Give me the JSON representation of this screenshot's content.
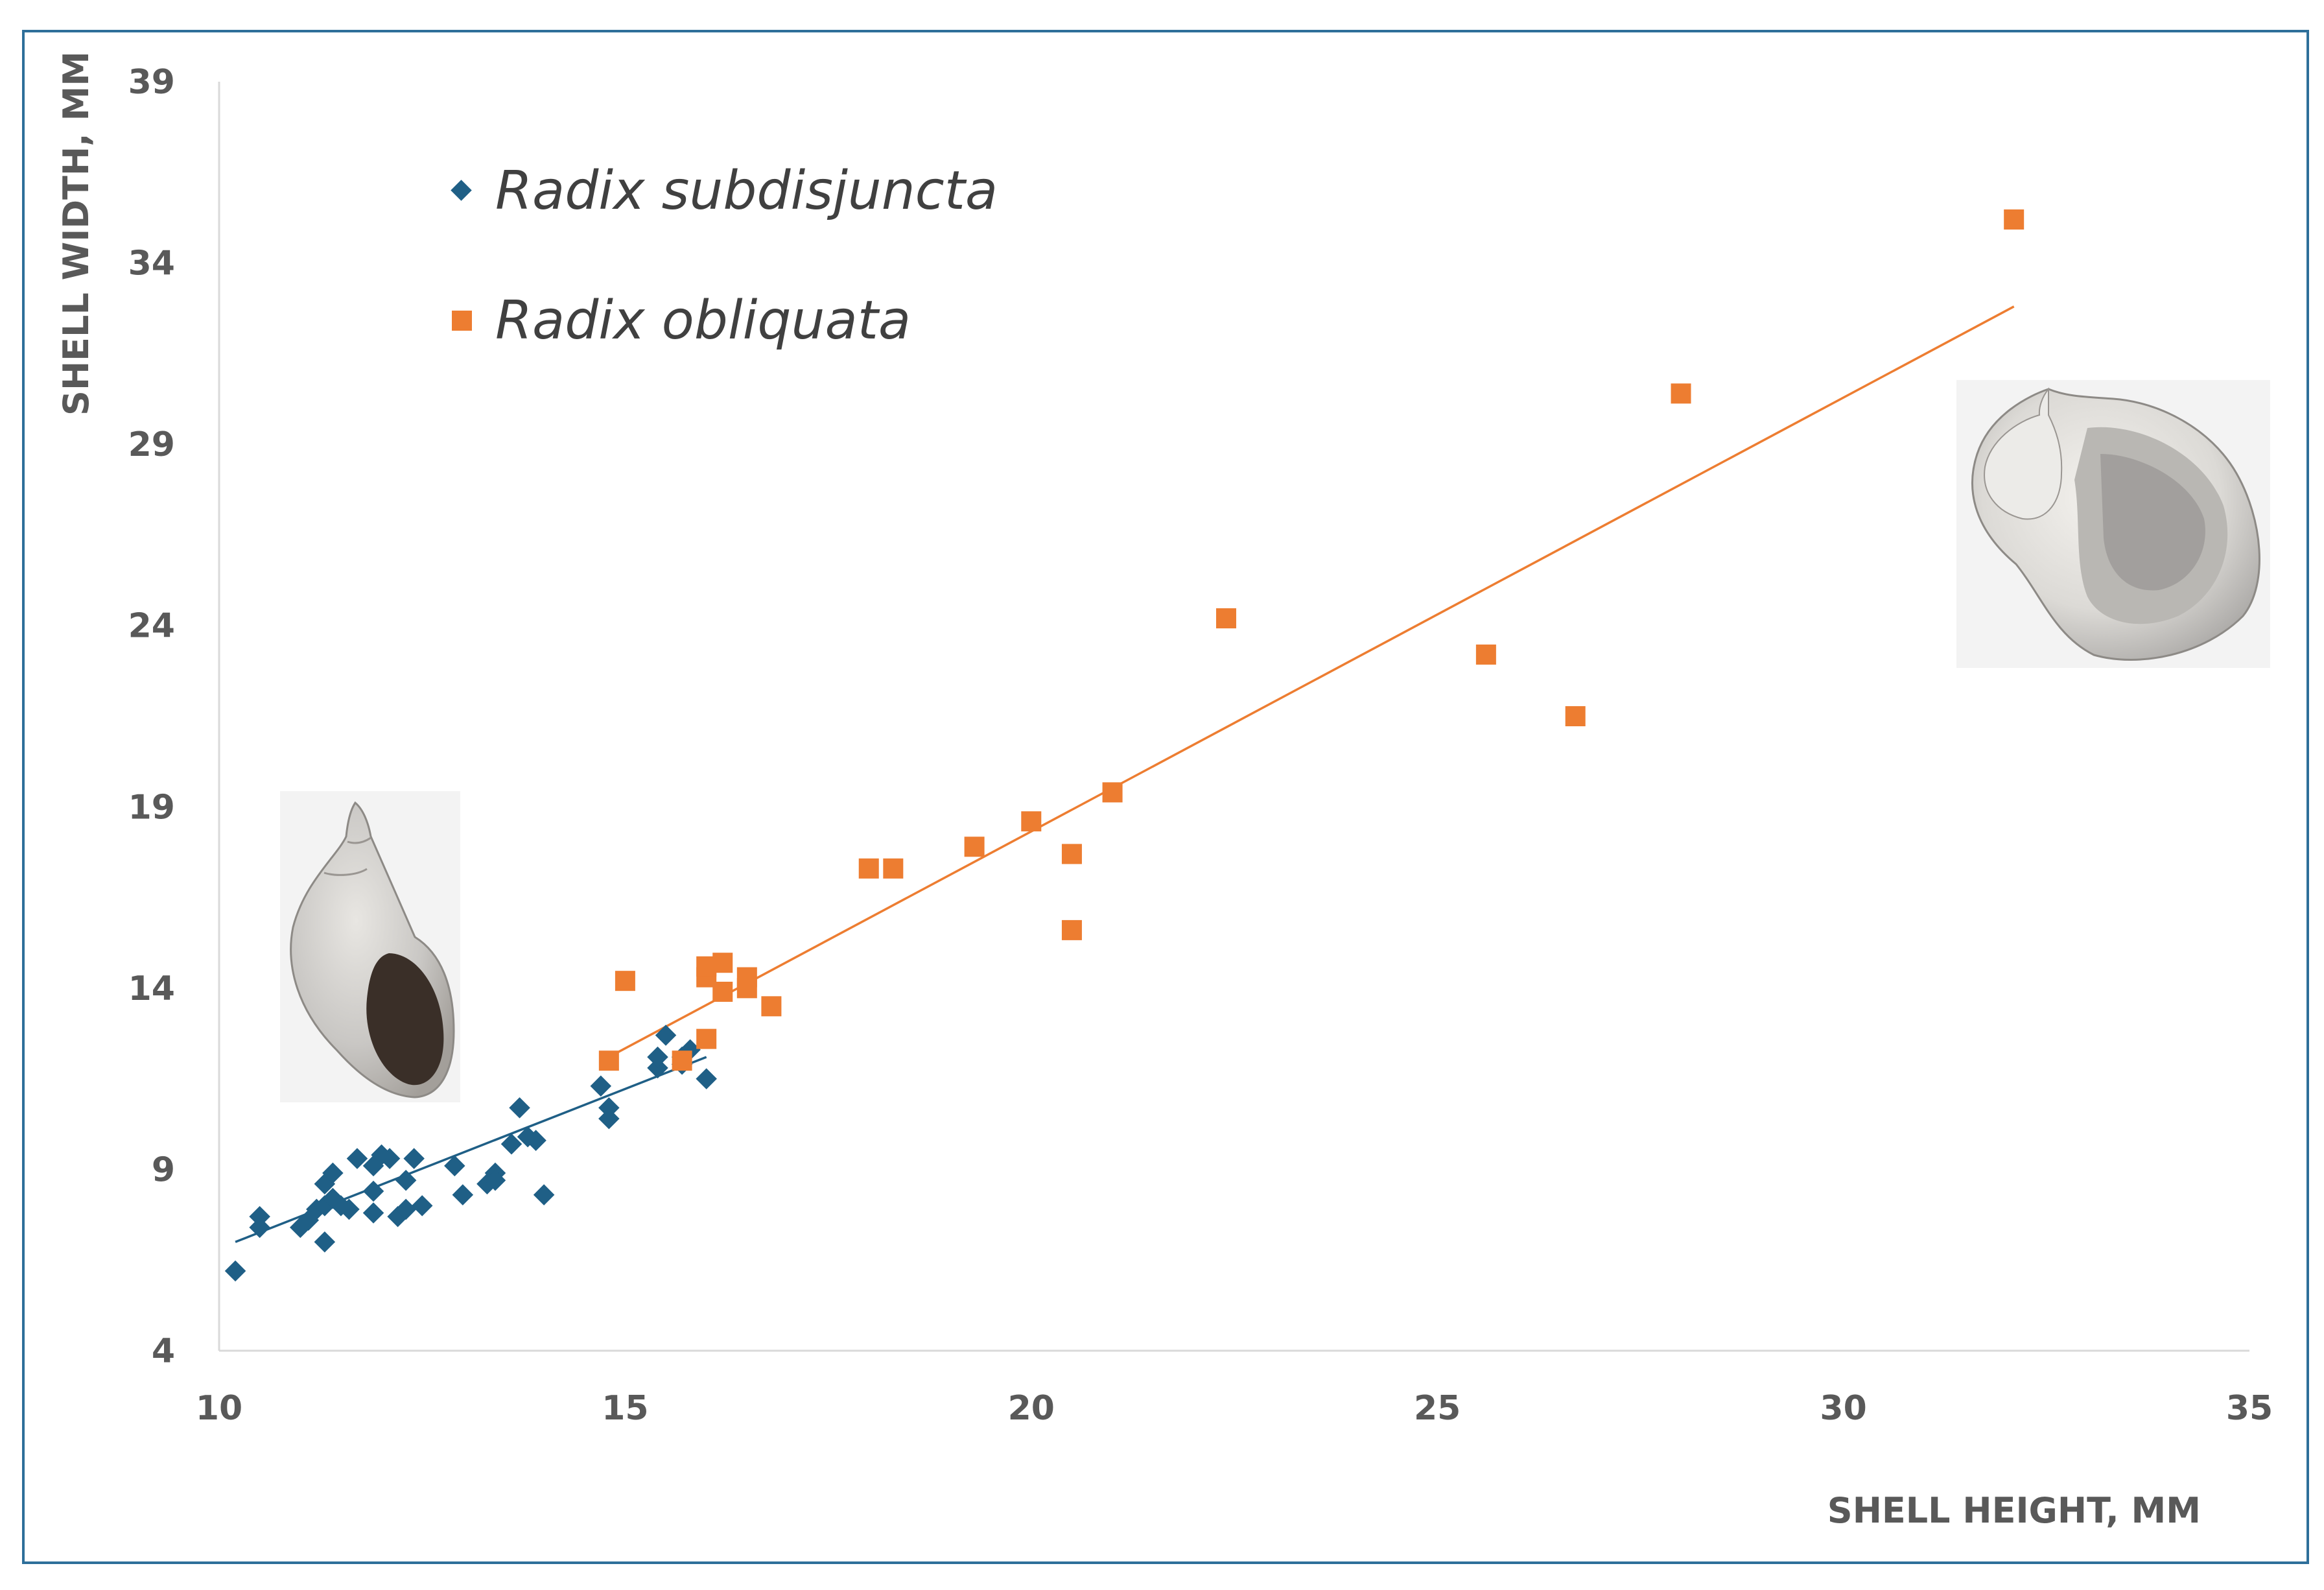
{
  "chart_data": {
    "type": "scatter",
    "xlabel": "SHELL HEIGHT, MM",
    "ylabel": "SHELL WIDTH, MM",
    "xlim": [
      10,
      35
    ],
    "ylim": [
      4,
      39
    ],
    "xticks": [
      10,
      15,
      20,
      25,
      30,
      35
    ],
    "yticks": [
      4,
      9,
      14,
      19,
      24,
      29,
      34,
      39
    ],
    "grid": false,
    "legend_position": "top-left",
    "series": [
      {
        "name": "Radix subdisjuncta",
        "marker": "diamond",
        "color": "#1f5f86",
        "points": [
          [
            10.2,
            6.2
          ],
          [
            10.5,
            7.4
          ],
          [
            10.5,
            7.7
          ],
          [
            11.0,
            7.4
          ],
          [
            11.1,
            7.6
          ],
          [
            11.2,
            7.9
          ],
          [
            11.3,
            8.0
          ],
          [
            11.3,
            8.6
          ],
          [
            11.4,
            8.9
          ],
          [
            11.4,
            8.2
          ],
          [
            11.5,
            8.0
          ],
          [
            11.6,
            7.9
          ],
          [
            11.3,
            7.0
          ],
          [
            11.7,
            9.3
          ],
          [
            11.9,
            9.1
          ],
          [
            11.9,
            8.4
          ],
          [
            11.9,
            7.8
          ],
          [
            12.0,
            9.4
          ],
          [
            12.1,
            9.3
          ],
          [
            12.2,
            7.7
          ],
          [
            12.3,
            8.7
          ],
          [
            12.3,
            7.9
          ],
          [
            12.4,
            9.3
          ],
          [
            12.5,
            8.0
          ],
          [
            12.9,
            9.1
          ],
          [
            13.0,
            8.3
          ],
          [
            13.3,
            8.6
          ],
          [
            13.4,
            8.9
          ],
          [
            13.4,
            8.7
          ],
          [
            13.6,
            9.7
          ],
          [
            13.7,
            10.7
          ],
          [
            13.8,
            9.9
          ],
          [
            13.9,
            9.8
          ],
          [
            14.0,
            8.3
          ],
          [
            14.7,
            11.3
          ],
          [
            14.8,
            10.7
          ],
          [
            14.8,
            10.4
          ],
          [
            15.4,
            11.8
          ],
          [
            15.4,
            12.1
          ],
          [
            15.5,
            12.7
          ],
          [
            15.7,
            11.9
          ],
          [
            15.7,
            12.1
          ],
          [
            15.8,
            12.3
          ],
          [
            16.0,
            11.5
          ]
        ],
        "trend": [
          [
            10.2,
            7.0
          ],
          [
            16.0,
            12.1
          ]
        ]
      },
      {
        "name": "Radix obliquata",
        "marker": "square",
        "color": "#ed7d31",
        "points": [
          [
            14.8,
            12.0
          ],
          [
            15.0,
            14.2
          ],
          [
            15.7,
            12.0
          ],
          [
            16.0,
            12.6
          ],
          [
            16.0,
            14.3
          ],
          [
            16.0,
            14.6
          ],
          [
            16.2,
            14.7
          ],
          [
            16.2,
            13.9
          ],
          [
            16.5,
            14.3
          ],
          [
            16.5,
            14.0
          ],
          [
            16.8,
            13.5
          ],
          [
            18.0,
            17.3
          ],
          [
            18.3,
            17.3
          ],
          [
            19.3,
            17.9
          ],
          [
            20.0,
            18.6
          ],
          [
            20.5,
            17.7
          ],
          [
            20.5,
            15.6
          ],
          [
            21.0,
            19.4
          ],
          [
            22.4,
            24.2
          ],
          [
            25.6,
            23.2
          ],
          [
            26.7,
            21.5
          ],
          [
            28.0,
            30.4
          ],
          [
            32.1,
            35.2
          ]
        ],
        "trend": [
          [
            14.8,
            12.1
          ],
          [
            32.1,
            32.8
          ]
        ]
      }
    ]
  }
}
